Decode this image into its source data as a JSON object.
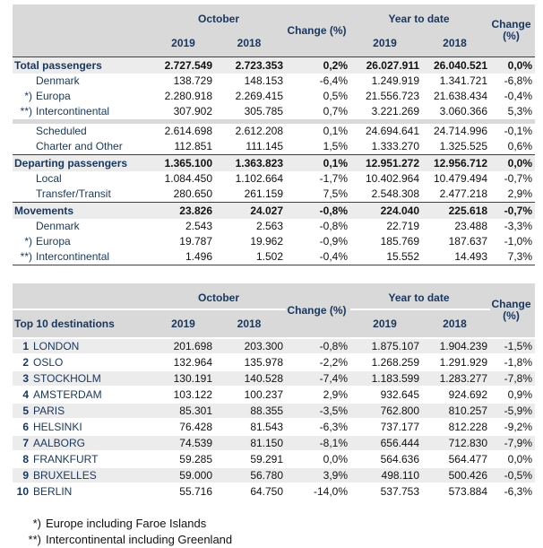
{
  "columns": {
    "october": "October",
    "ytd": "Year to date",
    "change": "Change (%)",
    "change_line1": "Change",
    "change_line2": "(%)",
    "y2019": "2019",
    "y2018": "2018"
  },
  "table1": {
    "rows": [
      {
        "type": "section",
        "marker": "",
        "label": "Total passengers",
        "values": [
          "2.727.549",
          "2.723.353",
          "0,2%",
          "26.027.911",
          "26.040.521",
          "0,0%"
        ]
      },
      {
        "type": "sub",
        "marker": "",
        "label": "Denmark",
        "values": [
          "138.729",
          "148.153",
          "-6,4%",
          "1.249.919",
          "1.341.721",
          "-6,8%"
        ]
      },
      {
        "type": "sub",
        "marker": "*)",
        "label": "Europa",
        "values": [
          "2.280.918",
          "2.269.415",
          "0,5%",
          "21.556.723",
          "21.638.434",
          "-0,4%"
        ]
      },
      {
        "type": "sub",
        "marker": "**)",
        "label": "Intercontinental",
        "values": [
          "307.902",
          "305.785",
          "0,7%",
          "3.221.269",
          "3.060.366",
          "5,3%"
        ]
      },
      {
        "type": "separator"
      },
      {
        "type": "sub",
        "marker": "",
        "label": "Scheduled",
        "values": [
          "2.614.698",
          "2.612.208",
          "0,1%",
          "24.694.641",
          "24.714.996",
          "-0,1%"
        ]
      },
      {
        "type": "sub",
        "marker": "",
        "label": "Charter and Other",
        "values": [
          "112.851",
          "111.145",
          "1,5%",
          "1.333.270",
          "1.325.525",
          "0,6%"
        ]
      },
      {
        "type": "section",
        "marker": "",
        "label": "Departing passengers",
        "values": [
          "1.365.100",
          "1.363.823",
          "0,1%",
          "12.951.272",
          "12.956.712",
          "0,0%"
        ]
      },
      {
        "type": "sub",
        "marker": "",
        "label": "Local",
        "values": [
          "1.084.450",
          "1.102.664",
          "-1,7%",
          "10.402.964",
          "10.479.494",
          "-0,7%"
        ]
      },
      {
        "type": "sub",
        "marker": "",
        "label": "Transfer/Transit",
        "values": [
          "280.650",
          "261.159",
          "7,5%",
          "2.548.308",
          "2.477.218",
          "2,9%"
        ]
      },
      {
        "type": "section",
        "marker": "",
        "label": "Movements",
        "values": [
          "23.826",
          "24.027",
          "-0,8%",
          "224.040",
          "225.618",
          "-0,7%"
        ]
      },
      {
        "type": "sub",
        "marker": "",
        "label": "Denmark",
        "values": [
          "2.543",
          "2.563",
          "-0,8%",
          "22.719",
          "23.488",
          "-3,3%"
        ]
      },
      {
        "type": "sub",
        "marker": "*)",
        "label": "Europa",
        "values": [
          "19.787",
          "19.962",
          "-0,9%",
          "185.769",
          "187.637",
          "-1,0%"
        ]
      },
      {
        "type": "sub",
        "marker": "**)",
        "label": "Intercontinental",
        "values": [
          "1.496",
          "1.502",
          "-0,4%",
          "15.552",
          "14.493",
          "7,3%"
        ]
      }
    ]
  },
  "table2": {
    "title": "Top 10 destinations",
    "rows": [
      {
        "rank": "1",
        "label": "LONDON",
        "values": [
          "201.698",
          "203.300",
          "-0,8%",
          "1.875.107",
          "1.904.239",
          "-1,5%"
        ]
      },
      {
        "rank": "2",
        "label": "OSLO",
        "values": [
          "132.964",
          "135.978",
          "-2,2%",
          "1.268.259",
          "1.291.929",
          "-1,8%"
        ]
      },
      {
        "rank": "3",
        "label": "STOCKHOLM",
        "values": [
          "130.191",
          "140.528",
          "-7,4%",
          "1.183.599",
          "1.283.277",
          "-7,8%"
        ]
      },
      {
        "rank": "4",
        "label": "AMSTERDAM",
        "values": [
          "103.122",
          "100.237",
          "2,9%",
          "932.645",
          "924.692",
          "0,9%"
        ]
      },
      {
        "rank": "5",
        "label": "PARIS",
        "values": [
          "85.301",
          "88.355",
          "-3,5%",
          "762.800",
          "810.257",
          "-5,9%"
        ]
      },
      {
        "rank": "6",
        "label": "HELSINKI",
        "values": [
          "76.428",
          "81.543",
          "-6,3%",
          "737.177",
          "812.228",
          "-9,2%"
        ]
      },
      {
        "rank": "7",
        "label": "AALBORG",
        "values": [
          "74.539",
          "81.150",
          "-8,1%",
          "656.444",
          "712.830",
          "-7,9%"
        ]
      },
      {
        "rank": "8",
        "label": "FRANKFURT",
        "values": [
          "59.285",
          "59.291",
          "0,0%",
          "564.636",
          "564.477",
          "0,0%"
        ]
      },
      {
        "rank": "9",
        "label": "BRUXELLES",
        "values": [
          "59.000",
          "56.780",
          "3,9%",
          "498.110",
          "500.426",
          "-0,5%"
        ]
      },
      {
        "rank": "10",
        "label": "BERLIN",
        "values": [
          "55.716",
          "64.750",
          "-14,0%",
          "537.753",
          "573.884",
          "-6,3%"
        ]
      }
    ]
  },
  "footnotes": [
    {
      "marker": "*)",
      "text": "Europe including Faroe Islands"
    },
    {
      "marker": "**)",
      "text": "Intercontinental including Greenland"
    }
  ]
}
